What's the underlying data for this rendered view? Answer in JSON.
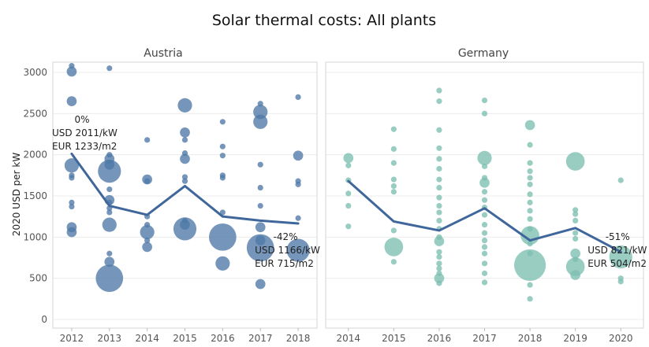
{
  "chart_data": {
    "type": "scatter",
    "title": "Solar thermal costs: All plants",
    "ylabel": "2020 USD per kW",
    "ylim": [
      -100,
      3100
    ],
    "yticks": [
      0,
      500,
      1000,
      1500,
      2000,
      2500,
      3000
    ],
    "grid": true,
    "panels": [
      {
        "name": "Austria",
        "color": "#4e79a7",
        "x": [
          "2012",
          "2013",
          "2014",
          "2015",
          "2016",
          "2017",
          "2018"
        ],
        "trend": [
          2011,
          1380,
          1270,
          1620,
          1250,
          1200,
          1166
        ],
        "points": [
          {
            "x": "2012",
            "y": 3080,
            "size": 1
          },
          {
            "x": "2012",
            "y": 3010,
            "size": 2
          },
          {
            "x": "2012",
            "y": 2650,
            "size": 2
          },
          {
            "x": "2012",
            "y": 1870,
            "size": 3
          },
          {
            "x": "2012",
            "y": 1750,
            "size": 1
          },
          {
            "x": "2012",
            "y": 1720,
            "size": 1
          },
          {
            "x": "2012",
            "y": 1420,
            "size": 1
          },
          {
            "x": "2012",
            "y": 1370,
            "size": 1
          },
          {
            "x": "2012",
            "y": 1120,
            "size": 2
          },
          {
            "x": "2012",
            "y": 1060,
            "size": 2
          },
          {
            "x": "2013",
            "y": 3050,
            "size": 1
          },
          {
            "x": "2013",
            "y": 2000,
            "size": 1
          },
          {
            "x": "2013",
            "y": 1950,
            "size": 2
          },
          {
            "x": "2013",
            "y": 1880,
            "size": 2
          },
          {
            "x": "2013",
            "y": 1800,
            "size": 5
          },
          {
            "x": "2013",
            "y": 1580,
            "size": 1
          },
          {
            "x": "2013",
            "y": 1450,
            "size": 2
          },
          {
            "x": "2013",
            "y": 1420,
            "size": 1
          },
          {
            "x": "2013",
            "y": 1350,
            "size": 1
          },
          {
            "x": "2013",
            "y": 1300,
            "size": 1
          },
          {
            "x": "2013",
            "y": 1150,
            "size": 3
          },
          {
            "x": "2013",
            "y": 800,
            "size": 1
          },
          {
            "x": "2013",
            "y": 700,
            "size": 2
          },
          {
            "x": "2013",
            "y": 500,
            "size": 6
          },
          {
            "x": "2014",
            "y": 2180,
            "size": 1
          },
          {
            "x": "2014",
            "y": 1700,
            "size": 2
          },
          {
            "x": "2014",
            "y": 1680,
            "size": 1
          },
          {
            "x": "2014",
            "y": 1250,
            "size": 1
          },
          {
            "x": "2014",
            "y": 1150,
            "size": 1
          },
          {
            "x": "2014",
            "y": 1060,
            "size": 3
          },
          {
            "x": "2014",
            "y": 960,
            "size": 1
          },
          {
            "x": "2014",
            "y": 880,
            "size": 2
          },
          {
            "x": "2015",
            "y": 2600,
            "size": 3
          },
          {
            "x": "2015",
            "y": 2270,
            "size": 2
          },
          {
            "x": "2015",
            "y": 2180,
            "size": 1
          },
          {
            "x": "2015",
            "y": 2020,
            "size": 1
          },
          {
            "x": "2015",
            "y": 1950,
            "size": 2
          },
          {
            "x": "2015",
            "y": 1730,
            "size": 1
          },
          {
            "x": "2015",
            "y": 1680,
            "size": 1
          },
          {
            "x": "2015",
            "y": 1200,
            "size": 1
          },
          {
            "x": "2015",
            "y": 1150,
            "size": 2
          },
          {
            "x": "2015",
            "y": 1100,
            "size": 5
          },
          {
            "x": "2016",
            "y": 2400,
            "size": 1
          },
          {
            "x": "2016",
            "y": 2100,
            "size": 1
          },
          {
            "x": "2016",
            "y": 1990,
            "size": 1
          },
          {
            "x": "2016",
            "y": 1750,
            "size": 1
          },
          {
            "x": "2016",
            "y": 1720,
            "size": 1
          },
          {
            "x": "2016",
            "y": 1300,
            "size": 1
          },
          {
            "x": "2016",
            "y": 1000,
            "size": 6
          },
          {
            "x": "2016",
            "y": 680,
            "size": 3
          },
          {
            "x": "2017",
            "y": 2620,
            "size": 1
          },
          {
            "x": "2017",
            "y": 2520,
            "size": 3
          },
          {
            "x": "2017",
            "y": 2400,
            "size": 3
          },
          {
            "x": "2017",
            "y": 1880,
            "size": 1
          },
          {
            "x": "2017",
            "y": 1600,
            "size": 1
          },
          {
            "x": "2017",
            "y": 1380,
            "size": 1
          },
          {
            "x": "2017",
            "y": 1120,
            "size": 2
          },
          {
            "x": "2017",
            "y": 960,
            "size": 2
          },
          {
            "x": "2017",
            "y": 870,
            "size": 6
          },
          {
            "x": "2017",
            "y": 430,
            "size": 2
          },
          {
            "x": "2018",
            "y": 2700,
            "size": 1
          },
          {
            "x": "2018",
            "y": 1990,
            "size": 2
          },
          {
            "x": "2018",
            "y": 1680,
            "size": 1
          },
          {
            "x": "2018",
            "y": 1640,
            "size": 1
          },
          {
            "x": "2018",
            "y": 1230,
            "size": 1
          },
          {
            "x": "2018",
            "y": 840,
            "size": 5
          }
        ],
        "annotations": [
          {
            "x": "2012",
            "y": 2011,
            "lines": [
              "0%",
              "USD 2011/kW",
              "EUR 1233/m2"
            ]
          },
          {
            "x": "2018",
            "y": 1166,
            "lines": [
              "-42%",
              "USD 1166/kW",
              "EUR 715/m2"
            ]
          }
        ]
      },
      {
        "name": "Germany",
        "color": "#7cbfb1",
        "x": [
          "2014",
          "2015",
          "2016",
          "2017",
          "2018",
          "2019",
          "2020"
        ],
        "trend": [
          1680,
          1190,
          1080,
          1350,
          960,
          1110,
          821
        ],
        "points": [
          {
            "x": "2014",
            "y": 1960,
            "size": 2
          },
          {
            "x": "2014",
            "y": 1870,
            "size": 1
          },
          {
            "x": "2014",
            "y": 1690,
            "size": 1
          },
          {
            "x": "2014",
            "y": 1530,
            "size": 1
          },
          {
            "x": "2014",
            "y": 1380,
            "size": 1
          },
          {
            "x": "2014",
            "y": 1130,
            "size": 1
          },
          {
            "x": "2015",
            "y": 2310,
            "size": 1
          },
          {
            "x": "2015",
            "y": 2070,
            "size": 1
          },
          {
            "x": "2015",
            "y": 1900,
            "size": 1
          },
          {
            "x": "2015",
            "y": 1700,
            "size": 1
          },
          {
            "x": "2015",
            "y": 1620,
            "size": 1
          },
          {
            "x": "2015",
            "y": 1550,
            "size": 1
          },
          {
            "x": "2015",
            "y": 1080,
            "size": 1
          },
          {
            "x": "2015",
            "y": 880,
            "size": 4
          },
          {
            "x": "2015",
            "y": 700,
            "size": 1
          },
          {
            "x": "2016",
            "y": 2780,
            "size": 1
          },
          {
            "x": "2016",
            "y": 2650,
            "size": 1
          },
          {
            "x": "2016",
            "y": 2300,
            "size": 1
          },
          {
            "x": "2016",
            "y": 2080,
            "size": 1
          },
          {
            "x": "2016",
            "y": 1950,
            "size": 1
          },
          {
            "x": "2016",
            "y": 1830,
            "size": 1
          },
          {
            "x": "2016",
            "y": 1700,
            "size": 1
          },
          {
            "x": "2016",
            "y": 1600,
            "size": 1
          },
          {
            "x": "2016",
            "y": 1480,
            "size": 1
          },
          {
            "x": "2016",
            "y": 1380,
            "size": 1
          },
          {
            "x": "2016",
            "y": 1300,
            "size": 1
          },
          {
            "x": "2016",
            "y": 1200,
            "size": 1
          },
          {
            "x": "2016",
            "y": 1100,
            "size": 1
          },
          {
            "x": "2016",
            "y": 1000,
            "size": 1
          },
          {
            "x": "2016",
            "y": 950,
            "size": 2
          },
          {
            "x": "2016",
            "y": 820,
            "size": 1
          },
          {
            "x": "2016",
            "y": 760,
            "size": 1
          },
          {
            "x": "2016",
            "y": 680,
            "size": 1
          },
          {
            "x": "2016",
            "y": 620,
            "size": 1
          },
          {
            "x": "2016",
            "y": 560,
            "size": 1
          },
          {
            "x": "2016",
            "y": 500,
            "size": 2
          },
          {
            "x": "2016",
            "y": 440,
            "size": 1
          },
          {
            "x": "2017",
            "y": 2660,
            "size": 1
          },
          {
            "x": "2017",
            "y": 2500,
            "size": 1
          },
          {
            "x": "2017",
            "y": 1960,
            "size": 3
          },
          {
            "x": "2017",
            "y": 1860,
            "size": 1
          },
          {
            "x": "2017",
            "y": 1720,
            "size": 1
          },
          {
            "x": "2017",
            "y": 1660,
            "size": 2
          },
          {
            "x": "2017",
            "y": 1550,
            "size": 1
          },
          {
            "x": "2017",
            "y": 1450,
            "size": 1
          },
          {
            "x": "2017",
            "y": 1360,
            "size": 1
          },
          {
            "x": "2017",
            "y": 1270,
            "size": 1
          },
          {
            "x": "2017",
            "y": 1150,
            "size": 1
          },
          {
            "x": "2017",
            "y": 1050,
            "size": 1
          },
          {
            "x": "2017",
            "y": 960,
            "size": 1
          },
          {
            "x": "2017",
            "y": 880,
            "size": 1
          },
          {
            "x": "2017",
            "y": 800,
            "size": 1
          },
          {
            "x": "2017",
            "y": 680,
            "size": 1
          },
          {
            "x": "2017",
            "y": 560,
            "size": 1
          },
          {
            "x": "2017",
            "y": 450,
            "size": 1
          },
          {
            "x": "2018",
            "y": 2360,
            "size": 2
          },
          {
            "x": "2018",
            "y": 2120,
            "size": 1
          },
          {
            "x": "2018",
            "y": 1900,
            "size": 1
          },
          {
            "x": "2018",
            "y": 1800,
            "size": 1
          },
          {
            "x": "2018",
            "y": 1720,
            "size": 1
          },
          {
            "x": "2018",
            "y": 1640,
            "size": 1
          },
          {
            "x": "2018",
            "y": 1520,
            "size": 1
          },
          {
            "x": "2018",
            "y": 1420,
            "size": 1
          },
          {
            "x": "2018",
            "y": 1320,
            "size": 1
          },
          {
            "x": "2018",
            "y": 1220,
            "size": 1
          },
          {
            "x": "2018",
            "y": 1100,
            "size": 1
          },
          {
            "x": "2018",
            "y": 1020,
            "size": 4
          },
          {
            "x": "2018",
            "y": 920,
            "size": 1
          },
          {
            "x": "2018",
            "y": 800,
            "size": 1
          },
          {
            "x": "2018",
            "y": 660,
            "size": 7
          },
          {
            "x": "2018",
            "y": 420,
            "size": 1
          },
          {
            "x": "2018",
            "y": 250,
            "size": 1
          },
          {
            "x": "2019",
            "y": 1920,
            "size": 4
          },
          {
            "x": "2019",
            "y": 1330,
            "size": 1
          },
          {
            "x": "2019",
            "y": 1280,
            "size": 1
          },
          {
            "x": "2019",
            "y": 1200,
            "size": 1
          },
          {
            "x": "2019",
            "y": 1050,
            "size": 1
          },
          {
            "x": "2019",
            "y": 980,
            "size": 1
          },
          {
            "x": "2019",
            "y": 800,
            "size": 2
          },
          {
            "x": "2019",
            "y": 730,
            "size": 1
          },
          {
            "x": "2019",
            "y": 640,
            "size": 4
          },
          {
            "x": "2019",
            "y": 540,
            "size": 2
          },
          {
            "x": "2020",
            "y": 1690,
            "size": 1
          },
          {
            "x": "2020",
            "y": 760,
            "size": 5
          },
          {
            "x": "2020",
            "y": 500,
            "size": 1
          },
          {
            "x": "2020",
            "y": 460,
            "size": 1
          }
        ],
        "annotations": [
          {
            "x": "2020",
            "y": 821,
            "lines": [
              "-51%",
              "USD 821/kW",
              "EUR 504/m2"
            ]
          }
        ]
      }
    ]
  }
}
